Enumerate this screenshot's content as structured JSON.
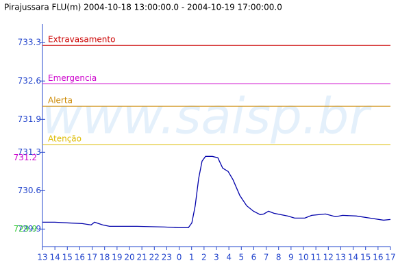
{
  "chart_data": {
    "type": "line",
    "title": "Pirajussara FLU(m) 2004-10-18 13:00:00.0 - 2004-10-19 17:00:00.0",
    "watermark": "www.saisp.br",
    "x": [
      0,
      0.99,
      2.09,
      3.2,
      3.91,
      4.19,
      4.85,
      5.4,
      7.61,
      9.81,
      10.92,
      11.74,
      12.02,
      12.29,
      12.57,
      12.84,
      13.12,
      13.67,
      14.11,
      14.5,
      14.94,
      15.33,
      15.88,
      16.43,
      16.98,
      17.53,
      17.81,
      18.19,
      18.63,
      19.74,
      20.29,
      21.11,
      21.66,
      22.22,
      22.77,
      23.59,
      24.15,
      25.25,
      26.35,
      27.45,
      28
    ],
    "series": [
      {
        "color": "#0000aa",
        "values": [
          730.025,
          730.025,
          730.012,
          730.0,
          729.975,
          730.025,
          729.975,
          729.95,
          729.95,
          729.938,
          729.925,
          729.925,
          730.012,
          730.325,
          730.825,
          731.138,
          731.225,
          731.225,
          731.2,
          731.012,
          730.95,
          730.8,
          730.512,
          730.325,
          730.225,
          730.162,
          730.175,
          730.225,
          730.188,
          730.138,
          730.1,
          730.1,
          730.15,
          730.162,
          730.175,
          730.125,
          730.15,
          730.138,
          730.1,
          730.062,
          730.075
        ]
      }
    ],
    "thresholds": [
      {
        "name": "Extravasamento",
        "value": 733.25,
        "color": "#cc0000"
      },
      {
        "name": "Emergencia",
        "value": 732.55,
        "color": "#cc00cc"
      },
      {
        "name": "Alerta",
        "value": 732.14,
        "color": "#cc8800"
      },
      {
        "name": "Atenção",
        "value": 731.44,
        "color": "#ddbb00"
      }
    ],
    "annotations": [
      {
        "text": "731.2",
        "value": 731.2,
        "color": "#cc00cc"
      },
      {
        "text": "729.9",
        "value": 729.9,
        "color": "#33cc33"
      }
    ],
    "xlim": [
      0,
      28
    ],
    "ylim": [
      729.58,
      733.64
    ],
    "xticks": [
      {
        "value": 0,
        "label": "13"
      },
      {
        "value": 1,
        "label": "14"
      },
      {
        "value": 2,
        "label": "15"
      },
      {
        "value": 3,
        "label": "16"
      },
      {
        "value": 4,
        "label": "17"
      },
      {
        "value": 5,
        "label": "18"
      },
      {
        "value": 6,
        "label": "19"
      },
      {
        "value": 7,
        "label": "20"
      },
      {
        "value": 8,
        "label": "21"
      },
      {
        "value": 9,
        "label": "22"
      },
      {
        "value": 10,
        "label": "23"
      },
      {
        "value": 11,
        "label": "0"
      },
      {
        "value": 12,
        "label": "1"
      },
      {
        "value": 13,
        "label": "2"
      },
      {
        "value": 14,
        "label": "3"
      },
      {
        "value": 15,
        "label": "4"
      },
      {
        "value": 16,
        "label": "5"
      },
      {
        "value": 17,
        "label": "6"
      },
      {
        "value": 18,
        "label": "7"
      },
      {
        "value": 19,
        "label": "8"
      },
      {
        "value": 20,
        "label": "9"
      },
      {
        "value": 21,
        "label": "10"
      },
      {
        "value": 22,
        "label": "11"
      },
      {
        "value": 23,
        "label": "12"
      },
      {
        "value": 24,
        "label": "13"
      },
      {
        "value": 25,
        "label": "14"
      },
      {
        "value": 26,
        "label": "15"
      },
      {
        "value": 27,
        "label": "16"
      },
      {
        "value": 28,
        "label": "17"
      }
    ],
    "yticks": [
      733.3,
      732.6,
      731.9,
      731.3,
      730.6,
      729.9
    ],
    "axis_color": "#2244cc"
  }
}
